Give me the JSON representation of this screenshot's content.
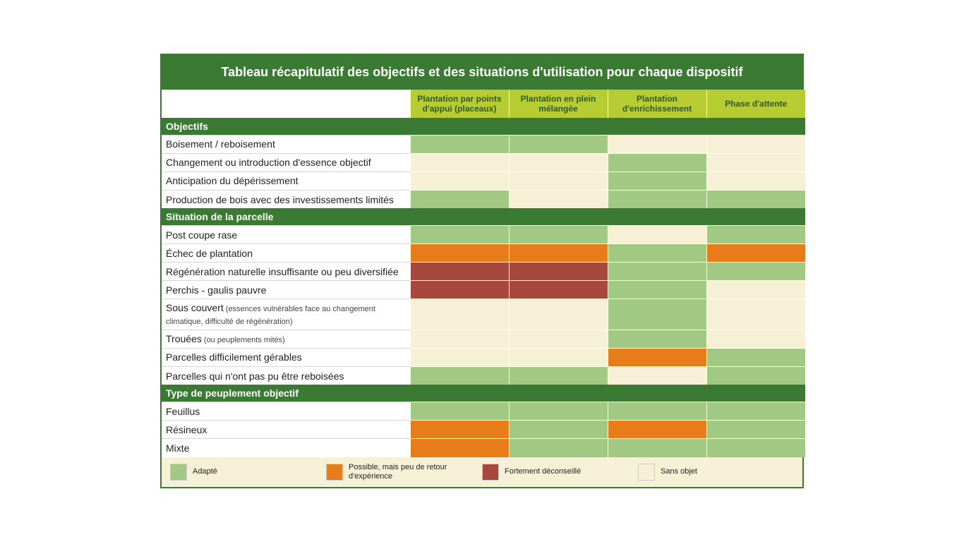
{
  "title": "Tableau récapitulatif des objectifs et des situations d'utilisation pour chaque dispositif",
  "palette": {
    "adapted": "#a2c983",
    "possible": "#e87b1a",
    "avoid": "#a8473e",
    "na": "#f6f0d6",
    "header_bg": "#b7cc33",
    "section_bg": "#3b7a32",
    "header_fg": "#2f5a26",
    "section_fg": "#ffffff",
    "label_bg": "#ffffff",
    "label_fg": "#222222",
    "border": "#ffffff"
  },
  "columns": [
    "Plantation par points d'appui (placeaux)",
    "Plantation en plein mélangée",
    "Plantation d'enrichissement",
    "Phase d'attente"
  ],
  "sections": [
    {
      "title": "Objectifs",
      "rows": [
        {
          "label": "Boisement / reboisement",
          "cells": [
            "adapted",
            "adapted",
            "na",
            "na"
          ]
        },
        {
          "label": "Changement ou introduction d'essence objectif",
          "cells": [
            "na",
            "na",
            "adapted",
            "na"
          ]
        },
        {
          "label": "Anticipation du dépérissement",
          "cells": [
            "na",
            "na",
            "adapted",
            "na"
          ]
        },
        {
          "label": "Production de bois avec des investissements limités",
          "cells": [
            "adapted",
            "na",
            "adapted",
            "adapted"
          ]
        }
      ]
    },
    {
      "title": "Situation de la parcelle",
      "rows": [
        {
          "label": "Post coupe rase",
          "cells": [
            "adapted",
            "adapted",
            "na",
            "adapted"
          ]
        },
        {
          "label": "Échec de plantation",
          "cells": [
            "possible",
            "possible",
            "adapted",
            "possible"
          ]
        },
        {
          "label": "Régénération naturelle insuffisante ou peu diversifiée",
          "cells": [
            "avoid",
            "avoid",
            "adapted",
            "adapted"
          ]
        },
        {
          "label": "Perchis - gaulis pauvre",
          "cells": [
            "avoid",
            "avoid",
            "adapted",
            "na"
          ]
        },
        {
          "label": "Sous couvert",
          "sublabel": "(essences vulnérables face au changement climatique, difficulté de régénération)",
          "tall": true,
          "cells": [
            "na",
            "na",
            "adapted",
            "na"
          ]
        },
        {
          "label": "Trouées",
          "sublabel": "(ou peuplements mités)",
          "cells": [
            "na",
            "na",
            "adapted",
            "na"
          ]
        },
        {
          "label": "Parcelles difficilement gérables",
          "cells": [
            "na",
            "na",
            "possible",
            "adapted"
          ]
        },
        {
          "label": "Parcelles qui n'ont pas pu être reboisées",
          "cells": [
            "adapted",
            "adapted",
            "na",
            "adapted"
          ]
        }
      ]
    },
    {
      "title": "Type de peuplement objectif",
      "rows": [
        {
          "label": "Feuillus",
          "cells": [
            "adapted",
            "adapted",
            "adapted",
            "adapted"
          ]
        },
        {
          "label": "Résineux",
          "cells": [
            "possible",
            "adapted",
            "possible",
            "adapted"
          ]
        },
        {
          "label": "Mixte",
          "cells": [
            "possible",
            "adapted",
            "adapted",
            "adapted"
          ]
        }
      ]
    }
  ],
  "legend": [
    {
      "key": "adapted",
      "label": "Adapté"
    },
    {
      "key": "possible",
      "label": "Possible, mais peu de retour d'expérience"
    },
    {
      "key": "avoid",
      "label": "Fortement déconseillé"
    },
    {
      "key": "na",
      "label": "Sans objet"
    }
  ]
}
